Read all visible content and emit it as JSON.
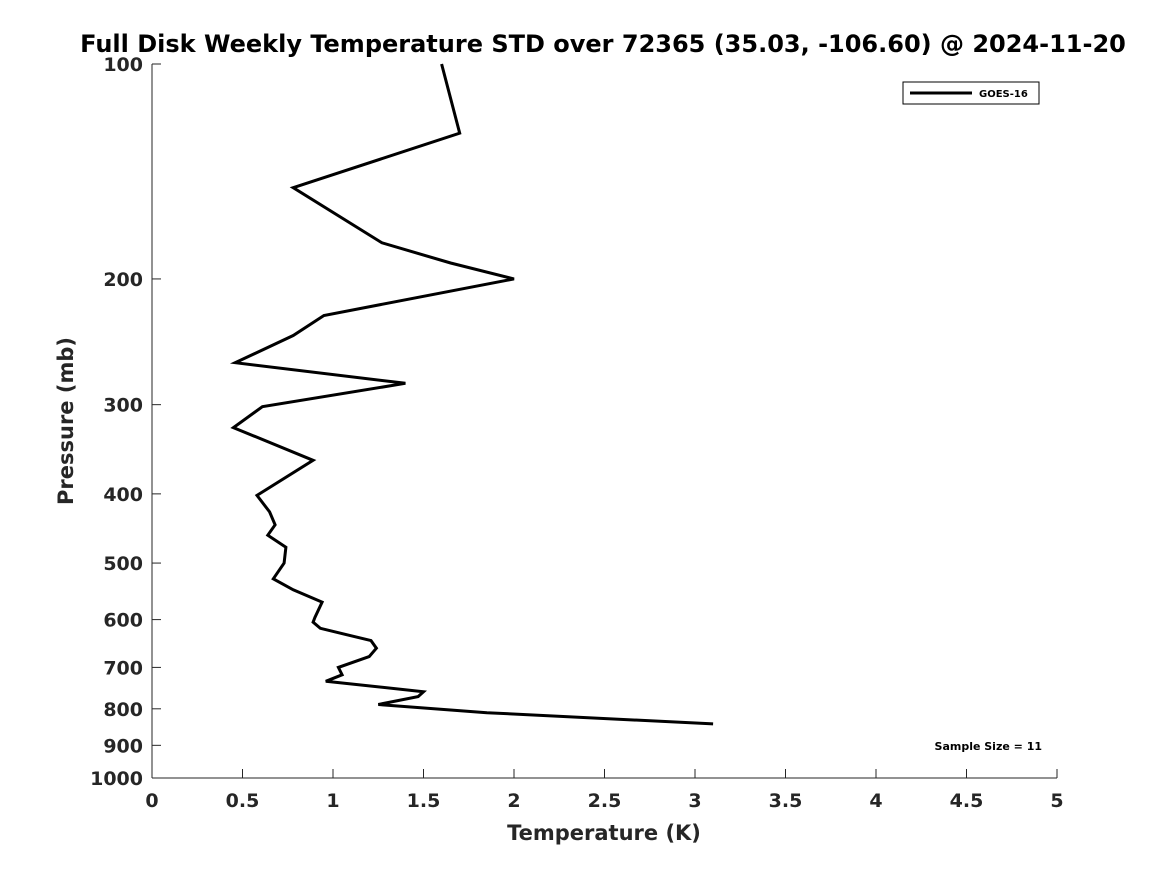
{
  "chart_data": {
    "type": "line",
    "title": "Full Disk Weekly Temperature STD over 72365 (35.03, -106.60) @ 2024-11-20",
    "xlabel": "Temperature (K)",
    "ylabel": "Pressure (mb)",
    "xlim": [
      0,
      5
    ],
    "ylim": [
      100,
      1000
    ],
    "y_scale": "log",
    "y_reversed": true,
    "x_ticks": [
      0,
      0.5,
      1,
      1.5,
      2,
      2.5,
      3,
      3.5,
      4,
      4.5,
      5
    ],
    "x_tick_labels": [
      "0",
      "0.5",
      "1",
      "1.5",
      "2",
      "2.5",
      "3",
      "3.5",
      "4",
      "4.5",
      "5"
    ],
    "y_ticks": [
      100,
      200,
      300,
      400,
      500,
      600,
      700,
      800,
      900,
      1000
    ],
    "y_tick_labels": [
      "100",
      "200",
      "300",
      "400",
      "500",
      "600",
      "700",
      "800",
      "900",
      "1000"
    ],
    "grid": false,
    "legend_position": "top-right",
    "annotation": "Sample Size = 11",
    "series": [
      {
        "name": "GOES-16",
        "color": "#000000",
        "points": [
          [
            1.6,
            100
          ],
          [
            1.7,
            125
          ],
          [
            0.78,
            149
          ],
          [
            1.27,
            178
          ],
          [
            1.65,
            190
          ],
          [
            2.0,
            200
          ],
          [
            0.95,
            225
          ],
          [
            0.78,
            240
          ],
          [
            0.46,
            262
          ],
          [
            1.4,
            280
          ],
          [
            0.61,
            302
          ],
          [
            0.45,
            323
          ],
          [
            0.89,
            359
          ],
          [
            0.58,
            402
          ],
          [
            0.65,
            424
          ],
          [
            0.68,
            442
          ],
          [
            0.64,
            457
          ],
          [
            0.74,
            475
          ],
          [
            0.73,
            500
          ],
          [
            0.67,
            526
          ],
          [
            0.78,
            545
          ],
          [
            0.94,
            567
          ],
          [
            0.9,
            596
          ],
          [
            0.89,
            605
          ],
          [
            0.93,
            617
          ],
          [
            1.21,
            642
          ],
          [
            1.24,
            658
          ],
          [
            1.2,
            676
          ],
          [
            1.03,
            700
          ],
          [
            1.05,
            717
          ],
          [
            0.96,
            732
          ],
          [
            1.5,
            757
          ],
          [
            1.47,
            769
          ],
          [
            1.25,
            789
          ],
          [
            1.85,
            810
          ],
          [
            3.1,
            840
          ]
        ]
      }
    ]
  }
}
